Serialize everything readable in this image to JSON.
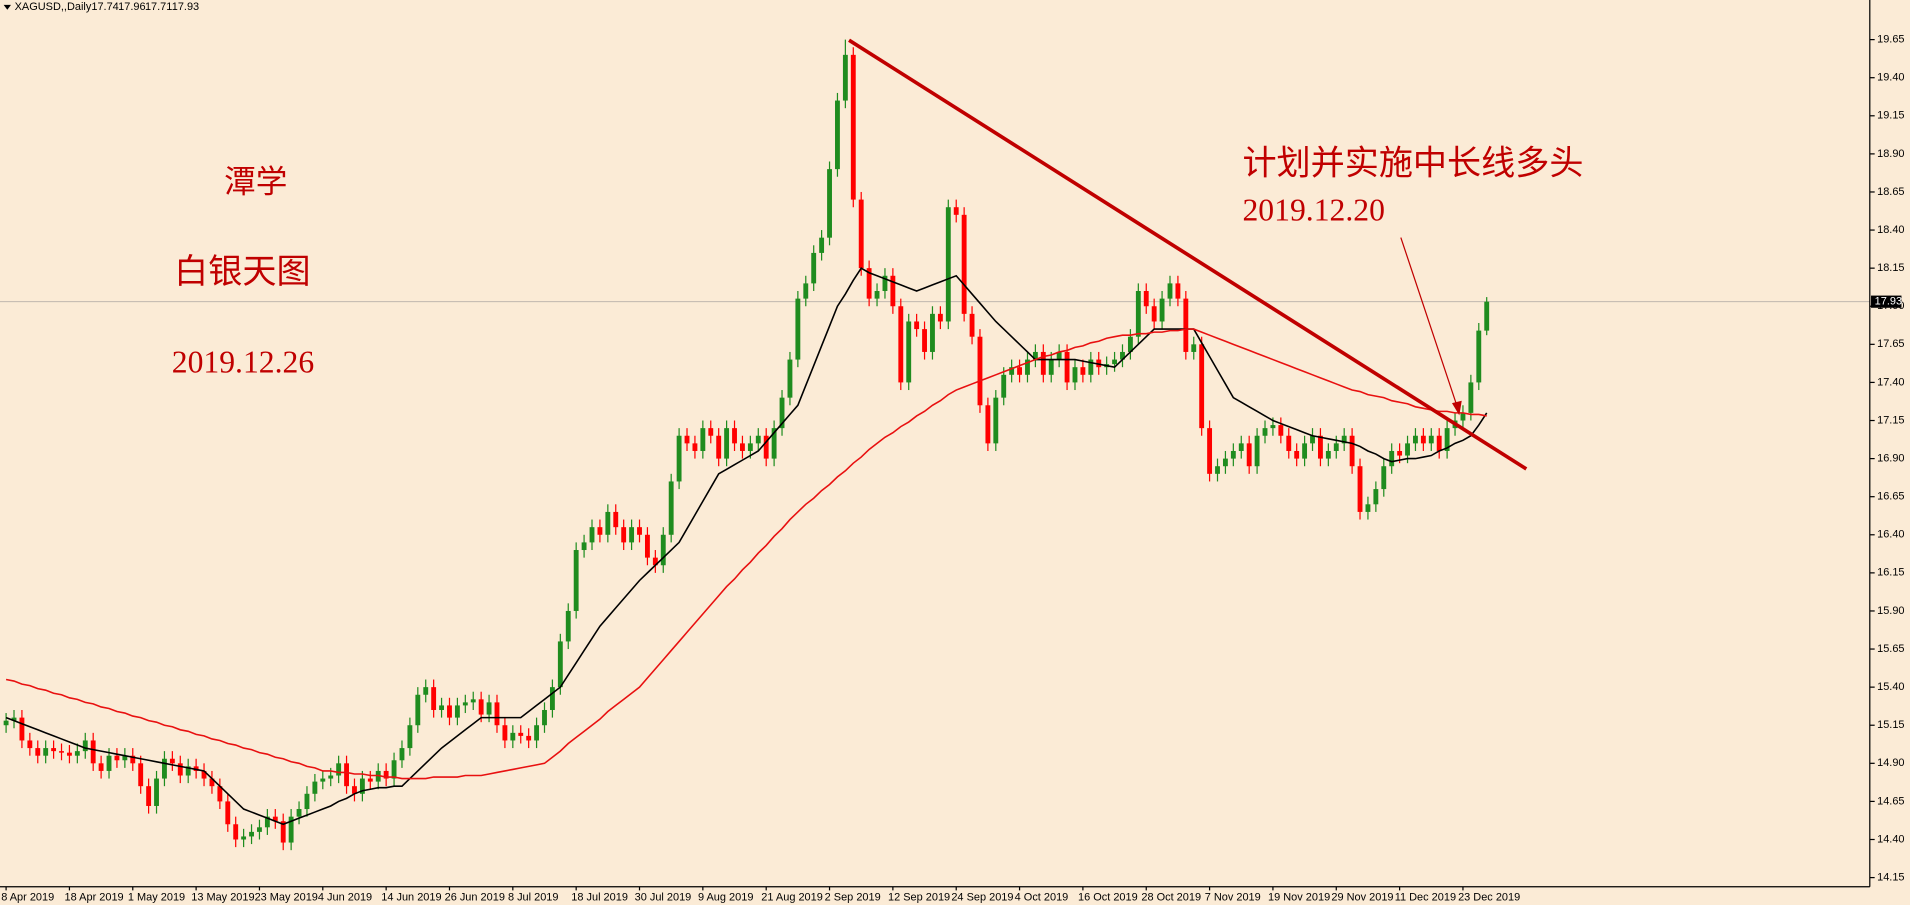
{
  "chart_data": {
    "type": "candlestick",
    "title": "XAGUSD,,Daily",
    "annotations": [
      "潭学",
      "白银天图",
      "2019.12.26",
      "计划并实施中长线多头",
      "2019.12.20"
    ],
    "up_color": "#1f8c1f",
    "down_color": "#ff0000",
    "grid": false,
    "ylim": [
      14.09,
      19.91
    ],
    "yticks": [
      19.65,
      {
        "value": 19.4,
        "label": "19.40"
      },
      19.15,
      {
        "value": 18.9,
        "label": "18.90"
      },
      18.65,
      {
        "value": 18.4,
        "label": "18.40"
      },
      18.15,
      {
        "value": 17.9,
        "label": "17.90"
      },
      17.65,
      {
        "value": 17.4,
        "label": "17.40"
      },
      17.15,
      {
        "value": 16.9,
        "label": "16.90"
      },
      16.65,
      {
        "value": 16.4,
        "label": "16.40"
      },
      16.15,
      {
        "value": 15.9,
        "label": "15.90"
      },
      15.65,
      {
        "value": 15.4,
        "label": "15.40"
      },
      15.15,
      {
        "value": 14.9,
        "label": "14.90"
      },
      14.65,
      {
        "value": 14.4,
        "label": "14.40"
      },
      14.15
    ],
    "categories": [
      "8 Apr 2019",
      null,
      null,
      null,
      null,
      null,
      null,
      null,
      "18 Apr 2019",
      null,
      null,
      null,
      null,
      null,
      null,
      null,
      "1 May 2019",
      null,
      null,
      null,
      null,
      null,
      null,
      null,
      "13 May 2019",
      null,
      null,
      null,
      null,
      null,
      null,
      null,
      "23 May 2019",
      null,
      null,
      null,
      null,
      null,
      null,
      null,
      "4 Jun 2019",
      null,
      null,
      null,
      null,
      null,
      null,
      null,
      "14 Jun 2019",
      null,
      null,
      null,
      null,
      null,
      null,
      null,
      "26 Jun 2019",
      null,
      null,
      null,
      null,
      null,
      null,
      null,
      "8 Jul 2019",
      null,
      null,
      null,
      null,
      null,
      null,
      null,
      "18 Jul 2019",
      null,
      null,
      null,
      null,
      null,
      null,
      null,
      "30 Jul 2019",
      null,
      null,
      null,
      null,
      null,
      null,
      null,
      "9 Aug 2019",
      null,
      null,
      null,
      null,
      null,
      null,
      null,
      "21 Aug 2019",
      null,
      null,
      null,
      null,
      null,
      null,
      null,
      "2 Sep 2019",
      null,
      null,
      null,
      null,
      null,
      null,
      null,
      "12 Sep 2019",
      null,
      null,
      null,
      null,
      null,
      null,
      null,
      "24 Sep 2019",
      null,
      null,
      null,
      null,
      null,
      null,
      null,
      "4 Oct 2019",
      null,
      null,
      null,
      null,
      null,
      null,
      null,
      "16 Oct 2019",
      null,
      null,
      null,
      null,
      null,
      null,
      null,
      "28 Oct 2019",
      null,
      null,
      null,
      null,
      null,
      null,
      null,
      "7 Nov 2019",
      null,
      null,
      null,
      null,
      null,
      null,
      null,
      "19 Nov 2019",
      null,
      null,
      null,
      null,
      null,
      null,
      null,
      "29 Nov 2019",
      null,
      null,
      null,
      null,
      null,
      null,
      null,
      "11 Dec 2019",
      null,
      null,
      null,
      null,
      null,
      null,
      null,
      "23 Dec 2019",
      null,
      null,
      null
    ],
    "open": [
      15.15,
      15.18,
      15.2,
      15.05,
      15.0,
      14.95,
      15.0,
      14.98,
      14.97,
      14.95,
      14.98,
      15.05,
      14.9,
      14.85,
      14.95,
      14.92,
      14.95,
      14.9,
      14.75,
      14.62,
      14.8,
      14.93,
      14.9,
      14.82,
      14.88,
      14.85,
      14.8,
      14.75,
      14.65,
      14.5,
      14.4,
      14.42,
      14.45,
      14.48,
      14.55,
      14.52,
      14.38,
      14.55,
      14.6,
      14.7,
      14.78,
      14.8,
      14.82,
      14.9,
      14.75,
      14.7,
      14.8,
      14.78,
      14.85,
      14.8,
      14.92,
      15.0,
      15.15,
      15.35,
      15.4,
      15.25,
      15.28,
      15.2,
      15.28,
      15.3,
      15.32,
      15.22,
      15.3,
      15.15,
      15.05,
      15.1,
      15.08,
      15.05,
      15.15,
      15.25,
      15.4,
      15.7,
      15.9,
      16.3,
      16.35,
      16.45,
      16.4,
      16.55,
      16.45,
      16.35,
      16.45,
      16.4,
      16.25,
      16.2,
      16.4,
      16.75,
      17.05,
      17.0,
      16.95,
      17.1,
      17.05,
      16.9,
      17.1,
      17.0,
      16.95,
      17.0,
      17.05,
      16.9,
      17.1,
      17.3,
      17.55,
      17.95,
      18.05,
      18.25,
      18.35,
      18.8,
      19.25,
      19.55,
      18.6,
      18.15,
      17.95,
      18.0,
      18.1,
      17.9,
      17.4,
      17.8,
      17.75,
      17.6,
      17.85,
      17.8,
      18.55,
      18.5,
      17.85,
      17.7,
      17.25,
      17.0,
      17.3,
      17.45,
      17.5,
      17.45,
      17.55,
      17.6,
      17.45,
      17.55,
      17.6,
      17.4,
      17.5,
      17.45,
      17.55,
      17.5,
      17.52,
      17.55,
      17.6,
      17.7,
      18.0,
      17.9,
      17.8,
      17.95,
      18.05,
      17.95,
      17.6,
      17.65,
      17.1,
      16.8,
      16.85,
      16.9,
      16.95,
      17.0,
      16.85,
      17.05,
      17.1,
      17.12,
      17.05,
      16.95,
      16.9,
      17.0,
      17.05,
      16.9,
      16.95,
      17.0,
      17.05,
      16.85,
      16.55,
      16.6,
      16.7,
      16.85,
      16.95,
      16.92,
      17.0,
      17.05,
      17.0,
      17.05,
      16.95,
      17.1,
      17.15,
      17.2,
      17.4,
      17.74
    ],
    "high": [
      15.23,
      15.25,
      15.25,
      15.1,
      15.05,
      15.05,
      15.05,
      15.03,
      15.02,
      15.03,
      15.1,
      15.1,
      14.95,
      15.0,
      15.0,
      15.0,
      15.0,
      14.95,
      14.8,
      14.85,
      14.98,
      14.98,
      14.95,
      14.93,
      14.93,
      14.9,
      14.85,
      14.8,
      14.7,
      14.55,
      14.47,
      14.5,
      14.53,
      14.6,
      14.6,
      14.57,
      14.6,
      14.65,
      14.75,
      14.83,
      14.85,
      14.87,
      14.95,
      14.95,
      14.8,
      14.85,
      14.85,
      14.9,
      14.9,
      14.97,
      15.05,
      15.2,
      15.4,
      15.45,
      15.45,
      15.33,
      15.33,
      15.33,
      15.35,
      15.37,
      15.37,
      15.35,
      15.35,
      15.2,
      15.15,
      15.15,
      15.13,
      15.2,
      15.3,
      15.45,
      15.75,
      15.95,
      16.35,
      16.4,
      16.5,
      16.5,
      16.6,
      16.6,
      16.5,
      16.5,
      16.5,
      16.45,
      16.3,
      16.45,
      16.8,
      17.1,
      17.1,
      17.05,
      17.15,
      17.15,
      17.1,
      17.15,
      17.15,
      17.05,
      17.05,
      17.1,
      17.1,
      17.15,
      17.35,
      17.6,
      18.0,
      18.1,
      18.3,
      18.4,
      18.85,
      19.3,
      19.65,
      19.6,
      18.65,
      18.2,
      18.05,
      18.15,
      18.15,
      17.95,
      17.85,
      17.85,
      17.8,
      17.9,
      17.9,
      18.6,
      18.6,
      18.55,
      17.9,
      17.75,
      17.3,
      17.35,
      17.5,
      17.55,
      17.55,
      17.6,
      17.65,
      17.65,
      17.6,
      17.65,
      17.65,
      17.55,
      17.55,
      17.6,
      17.6,
      17.57,
      17.6,
      17.65,
      17.75,
      18.05,
      18.05,
      17.95,
      18.0,
      18.1,
      18.1,
      18.0,
      17.7,
      17.7,
      17.15,
      16.9,
      16.95,
      17.0,
      17.05,
      17.05,
      17.1,
      17.15,
      17.17,
      17.17,
      17.1,
      17.0,
      17.05,
      17.1,
      17.1,
      17.0,
      17.05,
      17.1,
      17.1,
      16.9,
      16.65,
      16.75,
      16.9,
      17.0,
      17.0,
      17.05,
      17.1,
      17.1,
      17.1,
      17.1,
      17.15,
      17.2,
      17.25,
      17.45,
      17.79,
      17.96
    ],
    "low": [
      15.1,
      15.13,
      15.0,
      14.95,
      14.9,
      14.9,
      14.93,
      14.92,
      14.9,
      14.9,
      14.93,
      14.85,
      14.8,
      14.8,
      14.87,
      14.87,
      14.85,
      14.7,
      14.57,
      14.57,
      14.75,
      14.85,
      14.77,
      14.77,
      14.8,
      14.75,
      14.7,
      14.6,
      14.45,
      14.35,
      14.35,
      14.37,
      14.4,
      14.43,
      14.47,
      14.33,
      14.33,
      14.5,
      14.55,
      14.65,
      14.73,
      14.75,
      14.77,
      14.7,
      14.65,
      14.65,
      14.73,
      14.73,
      14.75,
      14.75,
      14.87,
      14.95,
      15.1,
      15.3,
      15.2,
      15.2,
      15.15,
      15.15,
      15.23,
      15.25,
      15.17,
      15.17,
      15.1,
      15.0,
      15.0,
      15.03,
      15.0,
      15.0,
      15.1,
      15.2,
      15.35,
      15.65,
      15.85,
      16.25,
      16.3,
      16.35,
      16.35,
      16.4,
      16.3,
      16.3,
      16.35,
      16.2,
      16.15,
      16.15,
      16.35,
      16.7,
      16.95,
      16.9,
      16.9,
      17.0,
      16.85,
      16.85,
      16.95,
      16.9,
      16.9,
      16.95,
      16.85,
      16.85,
      17.05,
      17.25,
      17.5,
      17.9,
      18.0,
      18.2,
      18.3,
      18.75,
      19.2,
      18.55,
      18.1,
      17.9,
      17.9,
      17.95,
      17.85,
      17.35,
      17.35,
      17.7,
      17.55,
      17.55,
      17.75,
      17.75,
      18.45,
      17.8,
      17.65,
      17.2,
      16.95,
      16.95,
      17.25,
      17.4,
      17.4,
      17.4,
      17.5,
      17.4,
      17.4,
      17.5,
      17.35,
      17.35,
      17.4,
      17.4,
      17.45,
      17.45,
      17.47,
      17.5,
      17.55,
      17.65,
      17.85,
      17.75,
      17.75,
      17.9,
      17.9,
      17.55,
      17.55,
      17.05,
      16.75,
      16.75,
      16.8,
      16.85,
      16.9,
      16.8,
      16.8,
      17.0,
      17.05,
      17.0,
      16.9,
      16.85,
      16.85,
      16.95,
      16.85,
      16.85,
      16.9,
      16.95,
      16.8,
      16.5,
      16.5,
      16.55,
      16.65,
      16.8,
      16.87,
      16.87,
      16.95,
      16.95,
      16.95,
      16.9,
      16.9,
      17.05,
      17.1,
      17.15,
      17.35,
      17.71
    ],
    "close": [
      15.18,
      15.2,
      15.05,
      15.0,
      14.95,
      15.0,
      14.98,
      14.97,
      14.95,
      14.98,
      15.05,
      14.9,
      14.85,
      14.95,
      14.92,
      14.95,
      14.9,
      14.75,
      14.62,
      14.8,
      14.93,
      14.9,
      14.82,
      14.88,
      14.85,
      14.8,
      14.75,
      14.65,
      14.5,
      14.4,
      14.42,
      14.45,
      14.48,
      14.55,
      14.52,
      14.38,
      14.55,
      14.6,
      14.7,
      14.78,
      14.8,
      14.82,
      14.9,
      14.75,
      14.7,
      14.8,
      14.78,
      14.85,
      14.8,
      14.92,
      15.0,
      15.15,
      15.35,
      15.4,
      15.25,
      15.28,
      15.2,
      15.28,
      15.3,
      15.32,
      15.22,
      15.3,
      15.15,
      15.05,
      15.1,
      15.08,
      15.05,
      15.15,
      15.25,
      15.4,
      15.7,
      15.9,
      16.3,
      16.35,
      16.45,
      16.4,
      16.55,
      16.45,
      16.35,
      16.45,
      16.4,
      16.25,
      16.2,
      16.4,
      16.75,
      17.05,
      17.0,
      16.95,
      17.1,
      17.05,
      16.9,
      17.1,
      17.0,
      16.95,
      17.0,
      17.05,
      16.9,
      17.1,
      17.3,
      17.55,
      17.95,
      18.05,
      18.25,
      18.35,
      18.8,
      19.25,
      19.55,
      18.6,
      18.15,
      17.95,
      18.0,
      18.1,
      17.9,
      17.4,
      17.8,
      17.75,
      17.6,
      17.85,
      17.8,
      18.55,
      18.5,
      17.85,
      17.7,
      17.25,
      17.0,
      17.3,
      17.45,
      17.5,
      17.45,
      17.55,
      17.6,
      17.45,
      17.55,
      17.6,
      17.4,
      17.5,
      17.45,
      17.55,
      17.5,
      17.52,
      17.55,
      17.6,
      17.7,
      18.0,
      17.9,
      17.8,
      17.95,
      18.05,
      17.95,
      17.6,
      17.65,
      17.1,
      16.8,
      16.85,
      16.9,
      16.95,
      17.0,
      16.85,
      17.05,
      17.1,
      17.12,
      17.05,
      16.95,
      16.9,
      17.0,
      17.05,
      16.9,
      16.95,
      17.0,
      17.05,
      16.85,
      16.55,
      16.6,
      16.7,
      16.85,
      16.95,
      16.92,
      17.0,
      17.05,
      17.0,
      17.05,
      16.95,
      17.1,
      17.15,
      17.2,
      17.4,
      17.74,
      17.93
    ],
    "series": [
      {
        "color": "#000000",
        "values": [
          15.2,
          15.18,
          15.16,
          15.14,
          15.12,
          15.1,
          15.08,
          15.06,
          15.04,
          15.02,
          15.0,
          14.99,
          14.98,
          14.97,
          14.96,
          14.95,
          14.94,
          14.93,
          14.92,
          14.91,
          14.9,
          14.89,
          14.88,
          14.87,
          14.86,
          14.85,
          14.8,
          14.75,
          14.7,
          14.65,
          14.6,
          14.58,
          14.56,
          14.54,
          14.52,
          14.5,
          14.52,
          14.54,
          14.56,
          14.58,
          14.6,
          14.62,
          14.65,
          14.67,
          14.7,
          14.72,
          14.73,
          14.74,
          14.74,
          14.75,
          14.75,
          14.8,
          14.85,
          14.9,
          14.95,
          15.0,
          15.04,
          15.08,
          15.12,
          15.16,
          15.2,
          15.2,
          15.2,
          15.2,
          15.2,
          15.2,
          15.24,
          15.28,
          15.32,
          15.36,
          15.4,
          15.48,
          15.56,
          15.64,
          15.72,
          15.8,
          15.86,
          15.92,
          15.98,
          16.04,
          16.1,
          16.15,
          16.2,
          16.25,
          16.3,
          16.35,
          16.44,
          16.53,
          16.62,
          16.71,
          16.8,
          16.83,
          16.86,
          16.89,
          16.92,
          16.95,
          17.01,
          17.07,
          17.13,
          17.19,
          17.25,
          17.38,
          17.51,
          17.64,
          17.77,
          17.9,
          17.98,
          18.07,
          18.15,
          18.12,
          18.1,
          18.08,
          18.06,
          18.04,
          18.02,
          18.0,
          18.02,
          18.04,
          18.06,
          18.08,
          18.1,
          18.04,
          17.98,
          17.92,
          17.86,
          17.8,
          17.75,
          17.7,
          17.65,
          17.6,
          17.55,
          17.55,
          17.55,
          17.55,
          17.55,
          17.55,
          17.54,
          17.53,
          17.52,
          17.51,
          17.5,
          17.55,
          17.6,
          17.65,
          17.7,
          17.75,
          17.75,
          17.75,
          17.75,
          17.75,
          17.75,
          17.66,
          17.57,
          17.48,
          17.39,
          17.3,
          17.27,
          17.24,
          17.21,
          17.18,
          17.15,
          17.13,
          17.11,
          17.09,
          17.07,
          17.05,
          17.04,
          17.03,
          17.02,
          17.01,
          17.0,
          16.98,
          16.95,
          16.93,
          16.9,
          16.88,
          16.89,
          16.9,
          16.9,
          16.91,
          16.92,
          16.95,
          16.97,
          17.0,
          17.02,
          17.05,
          17.12,
          17.2
        ]
      },
      {
        "color": "#e81010",
        "values": [
          15.45,
          15.44,
          15.42,
          15.41,
          15.39,
          15.38,
          15.36,
          15.35,
          15.33,
          15.32,
          15.3,
          15.29,
          15.27,
          15.26,
          15.24,
          15.23,
          15.21,
          15.2,
          15.18,
          15.17,
          15.15,
          15.14,
          15.12,
          15.11,
          15.09,
          15.08,
          15.06,
          15.05,
          15.03,
          15.02,
          15.0,
          14.99,
          14.97,
          14.96,
          14.94,
          14.93,
          14.91,
          14.9,
          14.88,
          14.87,
          14.85,
          14.85,
          14.84,
          14.84,
          14.83,
          14.83,
          14.82,
          14.82,
          14.81,
          14.81,
          14.8,
          14.8,
          14.8,
          14.8,
          14.81,
          14.81,
          14.81,
          14.81,
          14.82,
          14.82,
          14.82,
          14.83,
          14.84,
          14.85,
          14.86,
          14.87,
          14.88,
          14.89,
          14.9,
          14.94,
          14.98,
          15.03,
          15.07,
          15.11,
          15.15,
          15.19,
          15.24,
          15.28,
          15.32,
          15.36,
          15.4,
          15.46,
          15.52,
          15.58,
          15.64,
          15.7,
          15.76,
          15.82,
          15.88,
          15.94,
          16.0,
          16.06,
          16.11,
          16.17,
          16.22,
          16.28,
          16.33,
          16.39,
          16.44,
          16.5,
          16.55,
          16.6,
          16.64,
          16.69,
          16.73,
          16.78,
          16.82,
          16.87,
          16.91,
          16.96,
          17.0,
          17.04,
          17.07,
          17.11,
          17.14,
          17.18,
          17.21,
          17.25,
          17.28,
          17.32,
          17.35,
          17.37,
          17.39,
          17.41,
          17.43,
          17.45,
          17.47,
          17.49,
          17.51,
          17.53,
          17.55,
          17.57,
          17.58,
          17.6,
          17.61,
          17.63,
          17.64,
          17.66,
          17.67,
          17.69,
          17.7,
          17.71,
          17.71,
          17.72,
          17.72,
          17.73,
          17.73,
          17.74,
          17.74,
          17.75,
          17.75,
          17.73,
          17.71,
          17.69,
          17.67,
          17.65,
          17.63,
          17.61,
          17.59,
          17.57,
          17.55,
          17.53,
          17.51,
          17.49,
          17.47,
          17.45,
          17.43,
          17.41,
          17.39,
          17.37,
          17.35,
          17.34,
          17.32,
          17.31,
          17.3,
          17.28,
          17.27,
          17.26,
          17.24,
          17.23,
          17.22,
          17.21,
          17.21,
          17.2,
          17.2,
          17.19,
          17.19,
          17.18
        ]
      }
    ]
  }
}
